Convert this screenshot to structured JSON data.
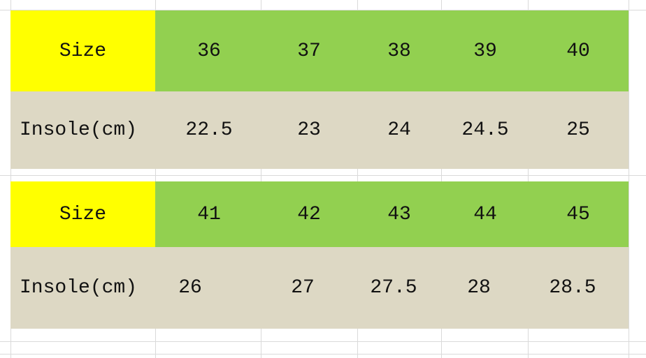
{
  "tables": [
    {
      "rows": [
        {
          "label": "Size",
          "values": [
            36,
            37,
            38,
            39,
            40
          ]
        },
        {
          "label": "Insole(cm)",
          "values": [
            22.5,
            23,
            24,
            24.5,
            25
          ]
        }
      ]
    },
    {
      "rows": [
        {
          "label": "Size",
          "values": [
            41,
            42,
            43,
            44,
            45
          ]
        },
        {
          "label": "Insole(cm)",
          "values": [
            26,
            27,
            27.5,
            28,
            28.5
          ]
        }
      ]
    }
  ]
}
